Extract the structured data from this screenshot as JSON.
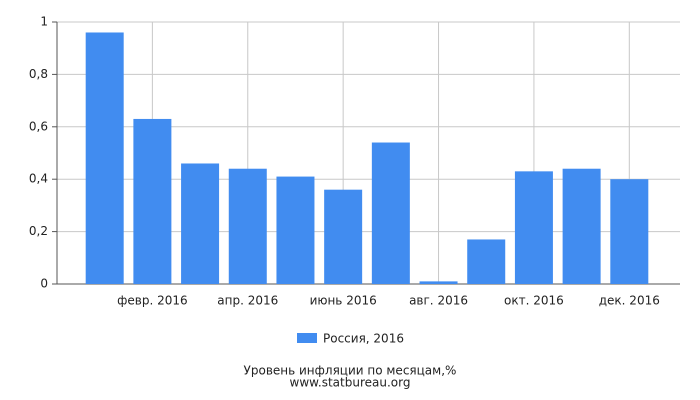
{
  "chart_data": {
    "type": "bar",
    "title": "Уровень инфляции по месяцам,%",
    "subtitle": "www.statbureau.org",
    "categories": [
      null,
      "февр. 2016",
      null,
      "апр. 2016",
      null,
      "июнь 2016",
      null,
      "авг. 2016",
      null,
      "окт. 2016",
      null,
      "дек. 2016"
    ],
    "series": [
      {
        "name": "Россия, 2016",
        "color": "#418cf0",
        "values": [
          0.96,
          0.63,
          0.46,
          0.44,
          0.41,
          0.36,
          0.54,
          0.01,
          0.17,
          0.43,
          0.44,
          0.4
        ]
      }
    ],
    "ylim": [
      0,
      1
    ],
    "yticks": [
      0,
      {
        "value": 0.2,
        "label": "0,2"
      },
      {
        "value": 0.4,
        "label": "0,4"
      },
      {
        "value": 0.6,
        "label": "0,6"
      },
      {
        "value": 0.8,
        "label": "0,8"
      },
      1
    ],
    "grid": true,
    "legend": "bottom"
  }
}
